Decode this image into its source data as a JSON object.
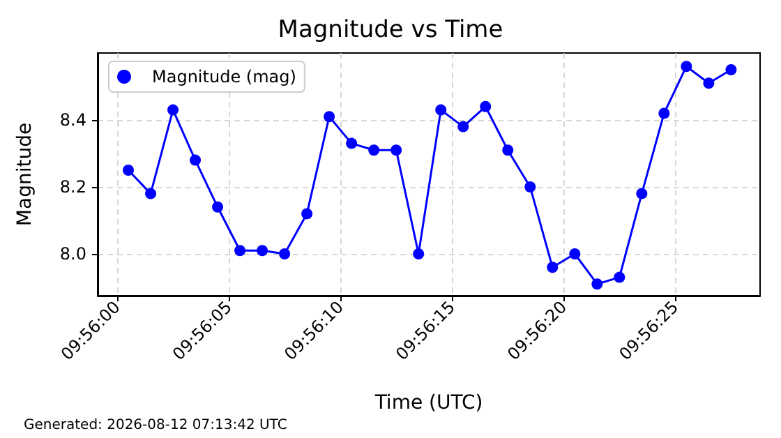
{
  "chart_data": {
    "type": "line",
    "title": "Magnitude vs Time",
    "xlabel": "Time (UTC)",
    "ylabel": "Magnitude",
    "annotations": [
      "Generated: 2026-08-12 07:13:42 UTC"
    ],
    "x": [
      9.9334722,
      9.93375,
      9.9340278,
      9.9343056,
      9.9345833,
      9.9348611,
      9.9351389,
      9.9354167,
      9.9356944,
      9.9359722,
      9.93625,
      9.9365278,
      9.9368056,
      9.9370833,
      9.9373611,
      9.9376389,
      9.9379167,
      9.9381944,
      9.9384722,
      9.93875,
      9.9390278,
      9.9393056,
      9.9395833,
      9.9398611,
      9.9401389,
      9.9404167,
      9.9406944,
      9.9409722
    ],
    "series": [
      {
        "name": "Magnitude (mag)",
        "color": "#0000ff",
        "values": [
          8.25,
          8.18,
          8.43,
          8.28,
          8.14,
          8.01,
          8.01,
          8.0,
          8.12,
          8.41,
          8.33,
          8.31,
          8.31,
          8.0,
          8.43,
          8.38,
          8.44,
          8.31,
          8.2,
          7.96,
          8.0,
          7.91,
          7.93,
          8.18,
          8.42,
          8.56,
          8.51,
          8.55
        ]
      }
    ],
    "xlim": [
      9.9330903,
      9.9413333
    ],
    "xticks": [
      {
        "value": 9.9333333,
        "label": "09:56:00"
      },
      {
        "value": 9.9347222,
        "label": "09:56:05"
      },
      {
        "value": 9.9361111,
        "label": "09:56:10"
      },
      {
        "value": 9.9375,
        "label": "09:56:15"
      },
      {
        "value": 9.9388889,
        "label": "09:56:20"
      },
      {
        "value": 9.9402778,
        "label": "09:56:25"
      }
    ],
    "ylim": [
      7.875,
      8.6
    ],
    "yticks": [
      {
        "value": 8,
        "label": "8.0"
      },
      8.2,
      8.4
    ],
    "grid": true,
    "legend": "top left",
    "marker": "circle",
    "line_style": "solid"
  }
}
